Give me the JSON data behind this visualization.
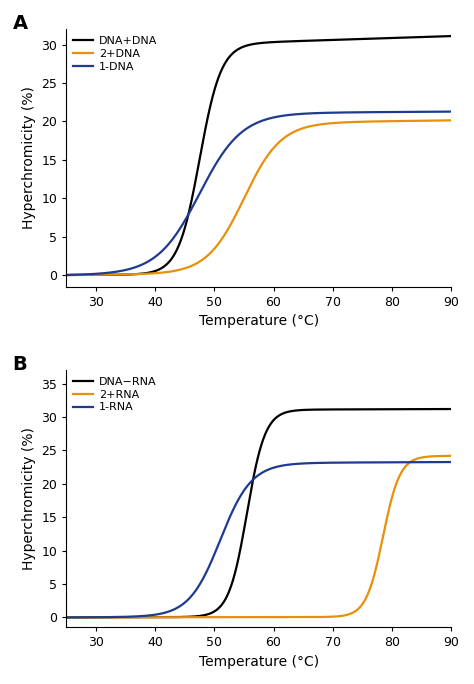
{
  "panel_A": {
    "title": "A",
    "ylabel": "Hyperchromicity (%)",
    "xlabel": "Temperature (°C)",
    "xlim": [
      25,
      90
    ],
    "ylim": [
      -1.5,
      32
    ],
    "yticks": [
      0,
      5,
      10,
      15,
      20,
      25,
      30
    ],
    "xticks": [
      30,
      40,
      50,
      60,
      70,
      80,
      90
    ],
    "series": [
      {
        "label": "DNA+DNA",
        "color": "#000000",
        "Tm": 47.5,
        "amplitude": 29.5,
        "k": 0.55,
        "upper_slope": 0.025,
        "lower_slope": 0.003
      },
      {
        "label": "2+DNA",
        "color": "#E8900A",
        "Tm": 55.0,
        "amplitude": 19.5,
        "k": 0.32,
        "upper_slope": 0.01,
        "lower_slope": 0.005
      },
      {
        "label": "1‐DNA",
        "color": "#1F3A8F",
        "Tm": 47.5,
        "amplitude": 21.0,
        "k": 0.28,
        "upper_slope": 0.005,
        "lower_slope": 0.008
      }
    ]
  },
  "panel_B": {
    "title": "B",
    "ylabel": "Hyperchromicity (%)",
    "xlabel": "Temperature (°C)",
    "xlim": [
      25,
      90
    ],
    "ylim": [
      -1.5,
      37
    ],
    "yticks": [
      0,
      5,
      10,
      15,
      20,
      25,
      30,
      35
    ],
    "xticks": [
      30,
      40,
      50,
      60,
      70,
      80,
      90
    ],
    "series": [
      {
        "label": "DNA−RNA",
        "color": "#000000",
        "Tm": 55.5,
        "amplitude": 31.0,
        "k": 0.65,
        "upper_slope": 0.003,
        "lower_slope": 0.002
      },
      {
        "label": "2+RNA",
        "color": "#E8900A",
        "Tm": 78.5,
        "amplitude": 24.0,
        "k": 0.7,
        "upper_slope": 0.003,
        "lower_slope": 0.001
      },
      {
        "label": "1‐RNA",
        "color": "#1F3A8F",
        "Tm": 51.0,
        "amplitude": 23.0,
        "k": 0.38,
        "upper_slope": 0.004,
        "lower_slope": 0.004
      }
    ]
  },
  "figure_bgcolor": "#ffffff",
  "linewidth": 1.6,
  "legend_fontsize": 8,
  "axis_label_fontsize": 10,
  "tick_fontsize": 9,
  "panel_label_fontsize": 14
}
